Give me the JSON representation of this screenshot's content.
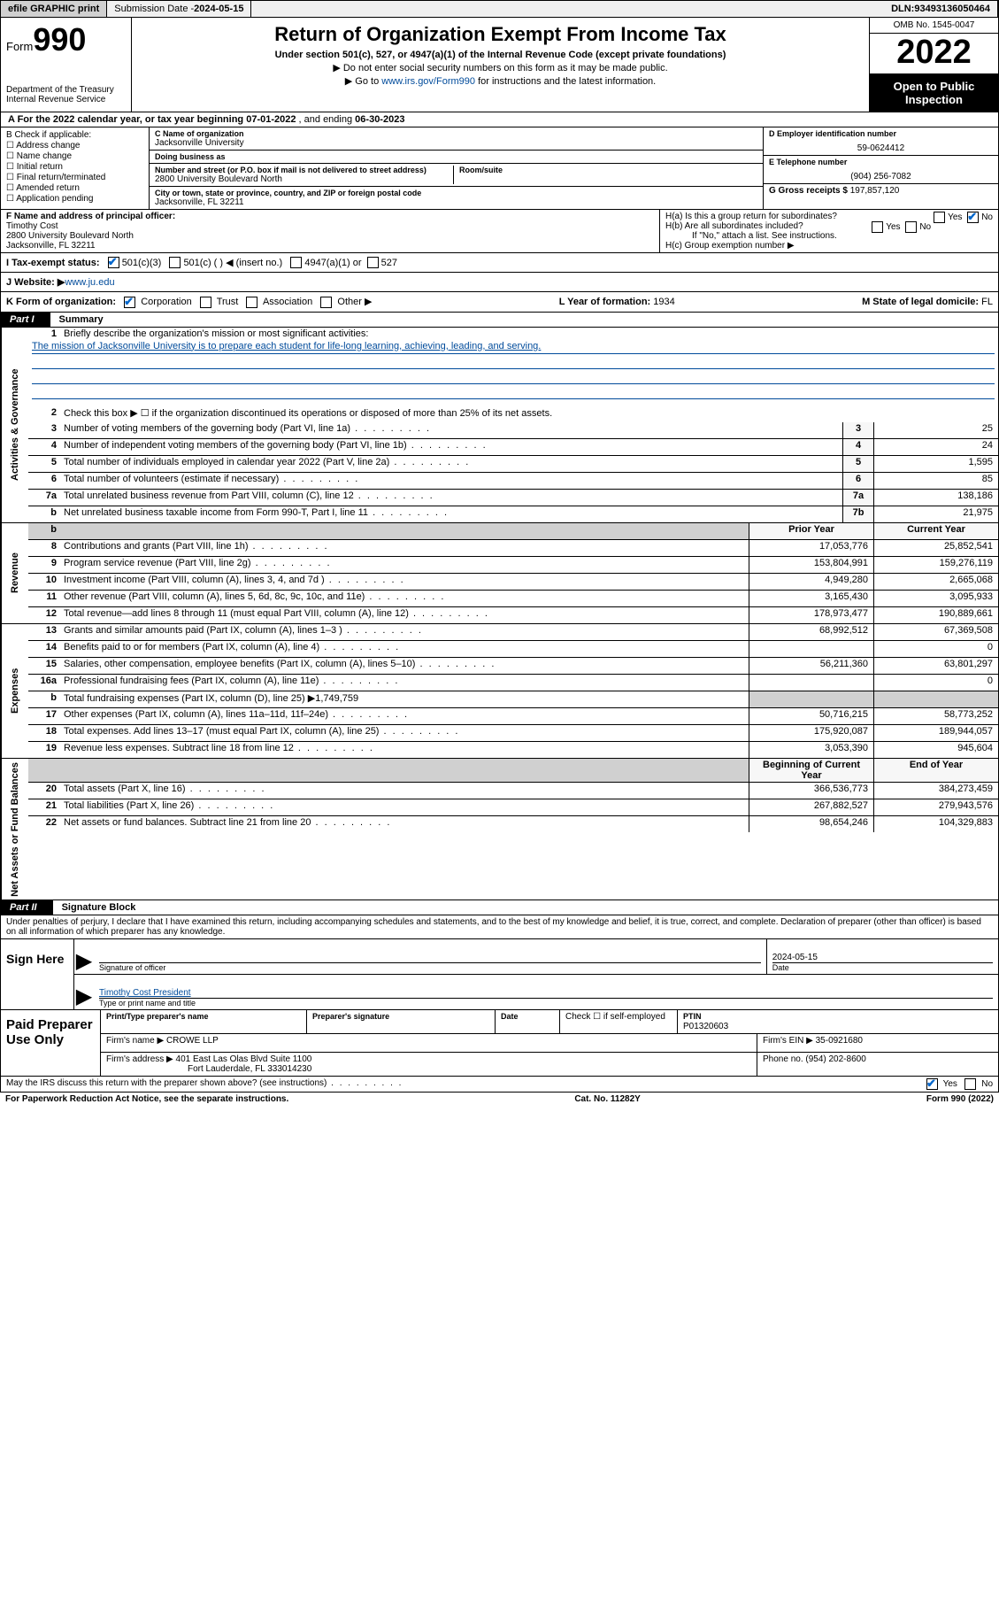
{
  "topbar": {
    "efile": "efile GRAPHIC print",
    "submission_label": "Submission Date - ",
    "submission_date": "2024-05-15",
    "dln_label": "DLN: ",
    "dln": "93493136050464"
  },
  "header": {
    "form_word": "Form",
    "form_num": "990",
    "dept": "Department of the Treasury",
    "irs": "Internal Revenue Service",
    "title": "Return of Organization Exempt From Income Tax",
    "subtitle": "Under section 501(c), 527, or 4947(a)(1) of the Internal Revenue Code (except private foundations)",
    "note1": "▶ Do not enter social security numbers on this form as it may be made public.",
    "note2_pre": "▶ Go to ",
    "note2_link": "www.irs.gov/Form990",
    "note2_post": " for instructions and the latest information.",
    "omb": "OMB No. 1545-0047",
    "year": "2022",
    "inspection": "Open to Public Inspection"
  },
  "lineA": {
    "text_pre": "A For the 2022 calendar year, or tax year beginning ",
    "begin": "07-01-2022",
    "mid": " , and ending ",
    "end": "06-30-2023"
  },
  "blockB": {
    "label": "B Check if applicable:",
    "items": [
      "Address change",
      "Name change",
      "Initial return",
      "Final return/terminated",
      "Amended return",
      "Application pending"
    ]
  },
  "blockC": {
    "name_label": "C Name of organization",
    "name": "Jacksonville University",
    "dba_label": "Doing business as",
    "dba": "",
    "street_label": "Number and street (or P.O. box if mail is not delivered to street address)",
    "street": "2800 University Boulevard North",
    "room_label": "Room/suite",
    "room": "",
    "city_label": "City or town, state or province, country, and ZIP or foreign postal code",
    "city": "Jacksonville, FL  32211"
  },
  "blockD": {
    "ein_label": "D Employer identification number",
    "ein": "59-0624412",
    "phone_label": "E Telephone number",
    "phone": "(904) 256-7082",
    "gross_label": "G Gross receipts $ ",
    "gross": "197,857,120"
  },
  "blockF": {
    "label": "F Name and address of principal officer:",
    "name": "Timothy Cost",
    "addr1": "2800 University Boulevard North",
    "addr2": "Jacksonville, FL  32211"
  },
  "blockH": {
    "ha": "H(a)  Is this a group return for subordinates?",
    "hb": "H(b)  Are all subordinates included?",
    "hb_note": "If \"No,\" attach a list. See instructions.",
    "hc": "H(c)  Group exemption number ▶"
  },
  "lineI": {
    "label": "I   Tax-exempt status:",
    "opt1": "501(c)(3)",
    "opt2": "501(c) (  ) ◀ (insert no.)",
    "opt3": "4947(a)(1) or",
    "opt4": "527"
  },
  "lineJ": {
    "label": "J   Website: ▶ ",
    "value": "www.ju.edu"
  },
  "lineK": {
    "label": "K Form of organization:",
    "opts": [
      "Corporation",
      "Trust",
      "Association",
      "Other ▶"
    ],
    "l_label": "L Year of formation: ",
    "l_val": "1934",
    "m_label": "M State of legal domicile: ",
    "m_val": "FL"
  },
  "parts": {
    "p1_label": "Part I",
    "p1_title": "Summary",
    "p2_label": "Part II",
    "p2_title": "Signature Block"
  },
  "summary": {
    "gov_label": "Activities & Governance",
    "rev_label": "Revenue",
    "exp_label": "Expenses",
    "net_label": "Net Assets or Fund Balances",
    "line1": "Briefly describe the organization's mission or most significant activities:",
    "mission": "The mission of Jacksonville University is to prepare each student for life-long learning, achieving, leading, and serving.",
    "line2": "Check this box ▶ ☐  if the organization discontinued its operations or disposed of more than 25% of its net assets.",
    "lines_gov": [
      {
        "n": "3",
        "d": "Number of voting members of the governing body (Part VI, line 1a)",
        "box": "3",
        "v": "25"
      },
      {
        "n": "4",
        "d": "Number of independent voting members of the governing body (Part VI, line 1b)",
        "box": "4",
        "v": "24"
      },
      {
        "n": "5",
        "d": "Total number of individuals employed in calendar year 2022 (Part V, line 2a)",
        "box": "5",
        "v": "1,595"
      },
      {
        "n": "6",
        "d": "Total number of volunteers (estimate if necessary)",
        "box": "6",
        "v": "85"
      },
      {
        "n": "7a",
        "d": "Total unrelated business revenue from Part VIII, column (C), line 12",
        "box": "7a",
        "v": "138,186"
      },
      {
        "n": "b",
        "d": "Net unrelated business taxable income from Form 990-T, Part I, line 11",
        "box": "7b",
        "v": "21,975"
      }
    ],
    "col_prior": "Prior Year",
    "col_current": "Current Year",
    "lines_rev": [
      {
        "n": "8",
        "d": "Contributions and grants (Part VIII, line 1h)",
        "p": "17,053,776",
        "c": "25,852,541"
      },
      {
        "n": "9",
        "d": "Program service revenue (Part VIII, line 2g)",
        "p": "153,804,991",
        "c": "159,276,119"
      },
      {
        "n": "10",
        "d": "Investment income (Part VIII, column (A), lines 3, 4, and 7d )",
        "p": "4,949,280",
        "c": "2,665,068"
      },
      {
        "n": "11",
        "d": "Other revenue (Part VIII, column (A), lines 5, 6d, 8c, 9c, 10c, and 11e)",
        "p": "3,165,430",
        "c": "3,095,933"
      },
      {
        "n": "12",
        "d": "Total revenue—add lines 8 through 11 (must equal Part VIII, column (A), line 12)",
        "p": "178,973,477",
        "c": "190,889,661"
      }
    ],
    "lines_exp": [
      {
        "n": "13",
        "d": "Grants and similar amounts paid (Part IX, column (A), lines 1–3 )",
        "p": "68,992,512",
        "c": "67,369,508"
      },
      {
        "n": "14",
        "d": "Benefits paid to or for members (Part IX, column (A), line 4)",
        "p": "",
        "c": "0"
      },
      {
        "n": "15",
        "d": "Salaries, other compensation, employee benefits (Part IX, column (A), lines 5–10)",
        "p": "56,211,360",
        "c": "63,801,297"
      },
      {
        "n": "16a",
        "d": "Professional fundraising fees (Part IX, column (A), line 11e)",
        "p": "",
        "c": "0"
      },
      {
        "n": "b",
        "d": "Total fundraising expenses (Part IX, column (D), line 25) ▶1,749,759",
        "p": "grey",
        "c": "grey"
      },
      {
        "n": "17",
        "d": "Other expenses (Part IX, column (A), lines 11a–11d, 11f–24e)",
        "p": "50,716,215",
        "c": "58,773,252"
      },
      {
        "n": "18",
        "d": "Total expenses. Add lines 13–17 (must equal Part IX, column (A), line 25)",
        "p": "175,920,087",
        "c": "189,944,057"
      },
      {
        "n": "19",
        "d": "Revenue less expenses. Subtract line 18 from line 12",
        "p": "3,053,390",
        "c": "945,604"
      }
    ],
    "col_begin": "Beginning of Current Year",
    "col_end": "End of Year",
    "lines_net": [
      {
        "n": "20",
        "d": "Total assets (Part X, line 16)",
        "p": "366,536,773",
        "c": "384,273,459"
      },
      {
        "n": "21",
        "d": "Total liabilities (Part X, line 26)",
        "p": "267,882,527",
        "c": "279,943,576"
      },
      {
        "n": "22",
        "d": "Net assets or fund balances. Subtract line 21 from line 20",
        "p": "98,654,246",
        "c": "104,329,883"
      }
    ]
  },
  "declaration": "Under penalties of perjury, I declare that I have examined this return, including accompanying schedules and statements, and to the best of my knowledge and belief, it is true, correct, and complete. Declaration of preparer (other than officer) is based on all information of which preparer has any knowledge.",
  "sign": {
    "here": "Sign Here",
    "sig_label": "Signature of officer",
    "date_label": "Date",
    "date": "2024-05-15",
    "name": "Timothy Cost President",
    "name_label": "Type or print name and title"
  },
  "preparer": {
    "label": "Paid Preparer Use Only",
    "col_name": "Print/Type preparer's name",
    "col_sig": "Preparer's signature",
    "col_date": "Date",
    "check_label": "Check ☐ if self-employed",
    "ptin_label": "PTIN",
    "ptin": "P01320603",
    "firm_name_label": "Firm's name    ▶ ",
    "firm_name": "CROWE LLP",
    "firm_ein_label": "Firm's EIN ▶ ",
    "firm_ein": "35-0921680",
    "firm_addr_label": "Firm's address ▶ ",
    "firm_addr1": "401 East Las Olas Blvd Suite 1100",
    "firm_addr2": "Fort Lauderdale, FL  333014230",
    "phone_label": "Phone no. ",
    "phone": "(954) 202-8600"
  },
  "footer": {
    "discuss": "May the IRS discuss this return with the preparer shown above? (see instructions)",
    "paperwork": "For Paperwork Reduction Act Notice, see the separate instructions.",
    "cat": "Cat. No. 11282Y",
    "formref": "Form 990 (2022)"
  }
}
